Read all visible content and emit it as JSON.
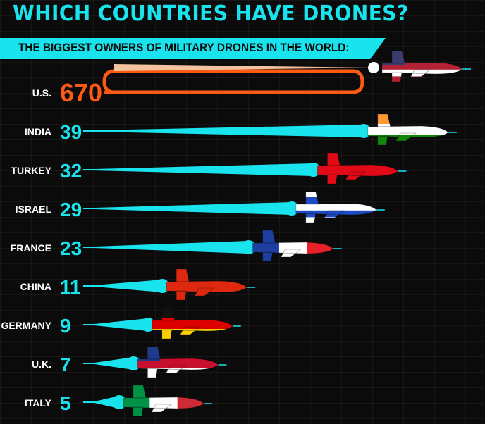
{
  "title": "WHICH COUNTRIES HAVE DRONES?",
  "subtitle": "THE BIGGEST OWNERS OF MILITARY DRONES IN THE WORLD:",
  "colors": {
    "background": "#0b0b0c",
    "accent": "#19e4ee",
    "highlight": "#ff5a14"
  },
  "chart_data": {
    "type": "bar",
    "title": "WHICH COUNTRIES HAVE DRONES?",
    "subtitle": "THE BIGGEST OWNERS OF MILITARY DRONES IN THE WORLD:",
    "categories": [
      "U.S.",
      "INDIA",
      "TURKEY",
      "ISRAEL",
      "FRANCE",
      "CHINA",
      "GERMANY",
      "U.K.",
      "ITALY"
    ],
    "values": [
      670,
      39,
      32,
      29,
      23,
      11,
      9,
      7,
      5
    ],
    "orientation": "horizontal",
    "highlight_category": "U.S.",
    "flags": [
      "us",
      "india",
      "turkey",
      "israel",
      "france",
      "china",
      "germany",
      "uk",
      "italy"
    ],
    "grid": true,
    "legend": "none"
  }
}
